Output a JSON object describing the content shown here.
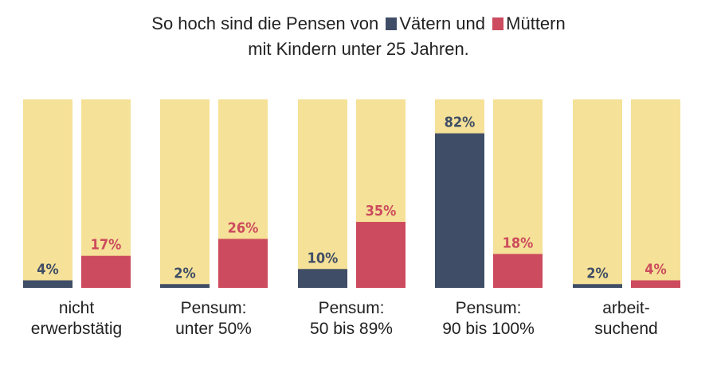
{
  "chart_data": {
    "type": "bar",
    "title_parts": {
      "before": "So hoch sind die Pensen von",
      "series_a": "Vätern und",
      "series_b": "Müttern",
      "line2": "mit Kindern unter 25 Jahren."
    },
    "categories": [
      [
        "nicht",
        "erwerbstätig"
      ],
      [
        "Pensum:",
        "unter 50%"
      ],
      [
        "Pensum:",
        "50 bis 89%"
      ],
      [
        "Pensum:",
        "90 bis 100%"
      ],
      [
        "arbeit-",
        "suchend"
      ]
    ],
    "series": [
      {
        "name": "Väter",
        "color": "#3f4d66",
        "values": [
          4,
          2,
          10,
          82,
          2
        ]
      },
      {
        "name": "Mütter",
        "color": "#cc4b5e",
        "values": [
          17,
          26,
          35,
          18,
          4
        ]
      }
    ],
    "track_color": "#f5e197",
    "ylim": [
      0,
      100
    ],
    "value_suffix": "%"
  }
}
